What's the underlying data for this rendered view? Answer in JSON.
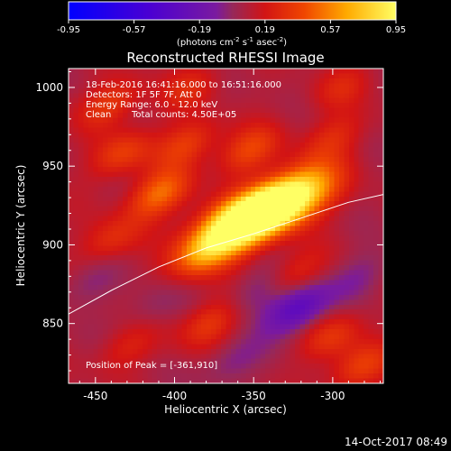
{
  "chart_data": {
    "type": "heatmap",
    "title": "Reconstructed RHESSI Image",
    "colorbar": {
      "ticks": [
        "-0.95",
        "-0.57",
        "-0.19",
        "0.19",
        "0.57",
        "0.95"
      ],
      "range": [
        -0.95,
        0.95
      ],
      "unit_base": "(photons cm",
      "unit_sup1": "-2",
      "unit_mid1": " s",
      "unit_sup2": "-1",
      "unit_mid2": " asec",
      "unit_sup3": "-2",
      "unit_end": ")"
    },
    "xlabel": "Heliocentric X (arcsec)",
    "ylabel": "Heliocentric Y (arcsec)",
    "xlim": [
      -467,
      -268
    ],
    "ylim": [
      812,
      1012
    ],
    "xticks": [
      -450,
      -400,
      -350,
      -300
    ],
    "yticks": [
      850,
      900,
      950,
      1000
    ],
    "xtick_labels": [
      "-450",
      "-400",
      "-350",
      "-300"
    ],
    "ytick_labels": [
      "850",
      "900",
      "950",
      "1000"
    ],
    "annotations": {
      "line1": "18-Feb-2016 16:41:16.000 to 16:51:16.000",
      "line2": "Detectors: 1F 5F 7F, Att 0",
      "line3": "Energy Range: 6.0 - 12.0 keV",
      "line4_a": "Clean",
      "line4_b": "Total counts: 4.50E+05",
      "peak": "Position of Peak = [-361,910]"
    },
    "peak": [
      -361,
      910
    ],
    "sources": [
      {
        "x": -363,
        "y": 911,
        "amp": 1.0
      },
      {
        "x": -325,
        "y": 930,
        "amp": 0.9
      },
      {
        "x": -343,
        "y": 922,
        "amp": 0.55
      },
      {
        "x": -383,
        "y": 894,
        "amp": 0.32
      },
      {
        "x": -410,
        "y": 932,
        "amp": 0.42
      },
      {
        "x": -433,
        "y": 958,
        "amp": 0.28
      },
      {
        "x": -392,
        "y": 964,
        "amp": 0.28
      },
      {
        "x": -353,
        "y": 960,
        "amp": 0.3
      },
      {
        "x": -440,
        "y": 903,
        "amp": 0.22
      },
      {
        "x": -378,
        "y": 850,
        "amp": 0.26
      },
      {
        "x": -325,
        "y": 880,
        "amp": 0.22
      },
      {
        "x": -300,
        "y": 842,
        "amp": 0.24
      },
      {
        "x": -283,
        "y": 822,
        "amp": 0.28
      },
      {
        "x": -300,
        "y": 968,
        "amp": 0.2
      },
      {
        "x": -440,
        "y": 990,
        "amp": 0.26
      },
      {
        "x": -390,
        "y": 1000,
        "amp": 0.18
      },
      {
        "x": -295,
        "y": 1000,
        "amp": 0.16
      },
      {
        "x": -430,
        "y": 835,
        "amp": 0.16
      },
      {
        "x": -322,
        "y": 860,
        "amp": -0.45
      },
      {
        "x": -348,
        "y": 870,
        "amp": -0.18
      },
      {
        "x": -363,
        "y": 826,
        "amp": -0.16
      },
      {
        "x": -283,
        "y": 880,
        "amp": -0.14
      },
      {
        "x": -455,
        "y": 875,
        "amp": -0.12
      },
      {
        "x": -415,
        "y": 860,
        "amp": -0.1
      }
    ],
    "limb_curve": [
      [
        -467,
        856
      ],
      [
        -440,
        871
      ],
      [
        -410,
        886
      ],
      [
        -380,
        898
      ],
      [
        -350,
        907
      ],
      [
        -320,
        917
      ],
      [
        -290,
        927
      ],
      [
        -268,
        932
      ]
    ],
    "limb_color": "#ffffff"
  },
  "footer": {
    "timestamp": "14-Oct-2017 08:49"
  }
}
